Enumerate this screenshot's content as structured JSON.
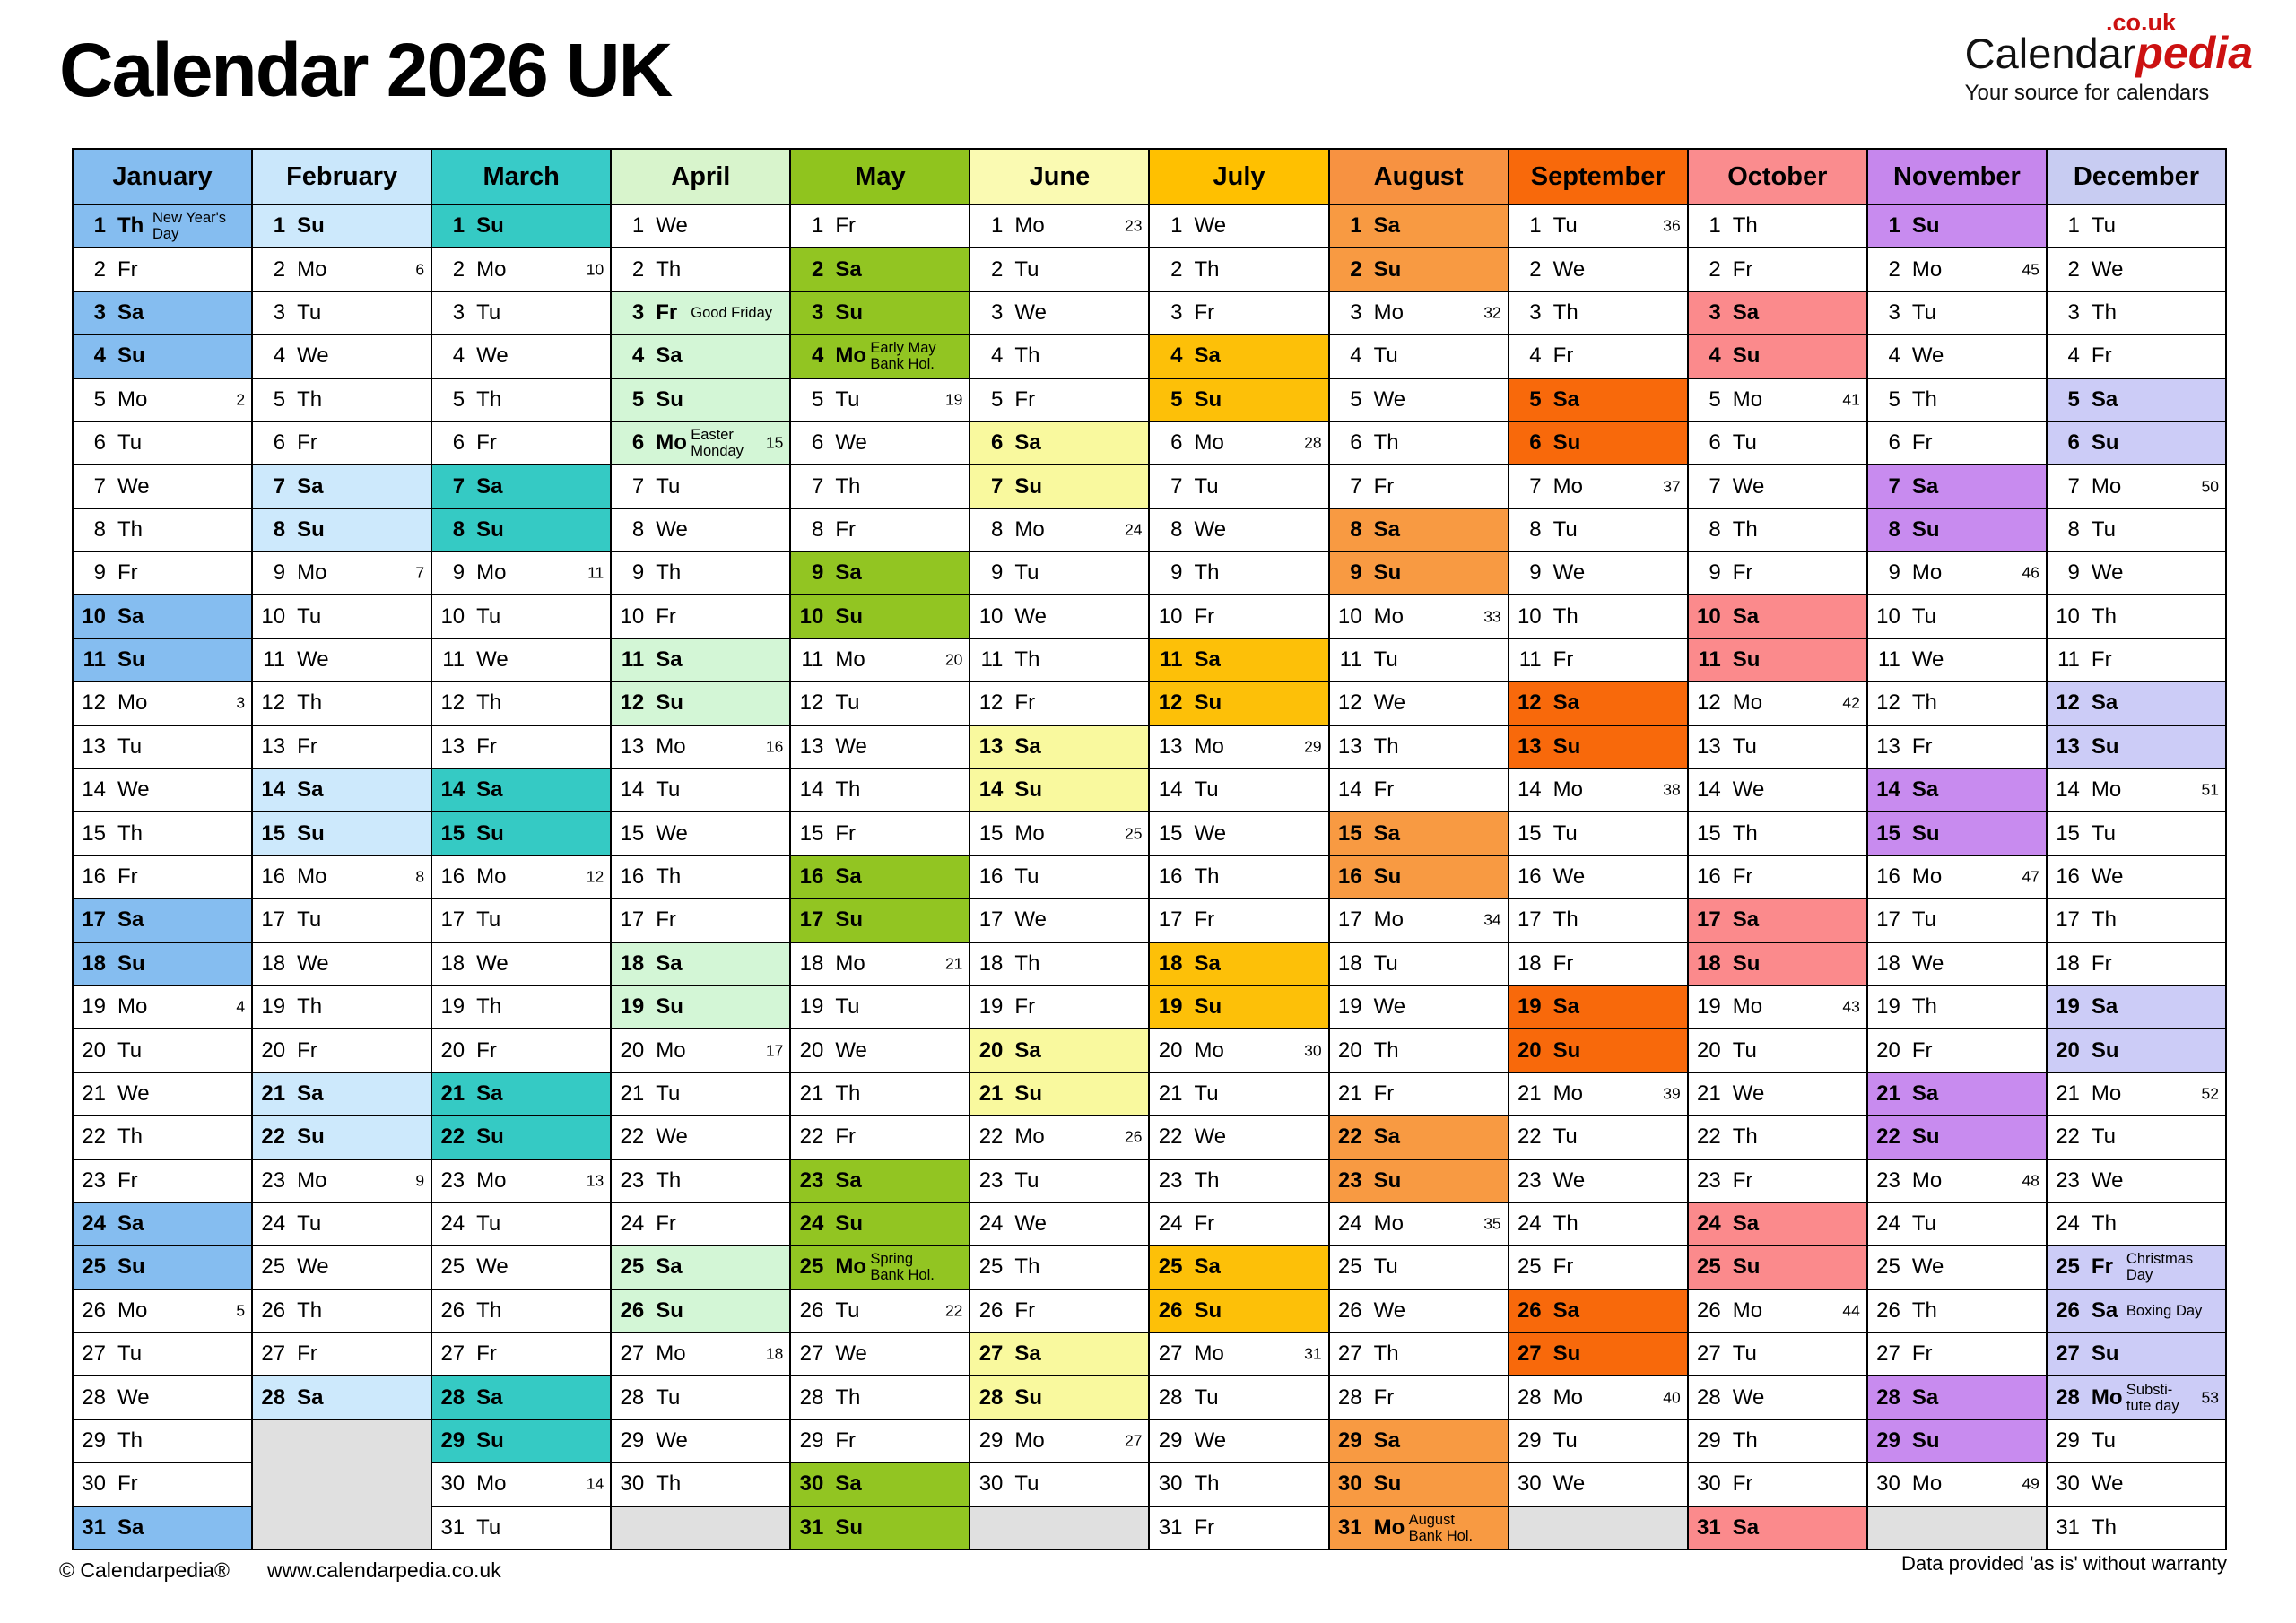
{
  "title": "Calendar 2026 UK",
  "logo": {
    "black_part": "Calendar",
    "red_part": "pedia",
    "tld": ".co.uk",
    "tagline": "Your source for calendars"
  },
  "footer": {
    "copyright": "© Calendarpedia®",
    "url": "www.calendarpedia.co.uk",
    "disclaimer": "Data provided 'as is' without warranty"
  },
  "empty_cell_color": "#e0e0e0",
  "months": [
    {
      "name": "January",
      "header_color": "#85bdf0",
      "color": "#85bdf0",
      "dows": [
        "Th",
        "Fr",
        "Sa",
        "Su",
        "Mo",
        "Tu",
        "We",
        "Th",
        "Fr",
        "Sa",
        "Su",
        "Mo",
        "Tu",
        "We",
        "Th",
        "Fr",
        "Sa",
        "Su",
        "Mo",
        "Tu",
        "We",
        "Th",
        "Fr",
        "Sa",
        "Su",
        "Mo",
        "Tu",
        "We",
        "Th",
        "Fr",
        "Sa"
      ],
      "notes": {
        "1": [
          "New Year's",
          "Day"
        ]
      },
      "weeks": {
        "5": 2,
        "12": 3,
        "19": 4,
        "26": 5
      }
    },
    {
      "name": "February",
      "header_color": "#cae7fb",
      "color": "#cde9fc",
      "dows": [
        "Su",
        "Mo",
        "Tu",
        "We",
        "Th",
        "Fr",
        "Sa",
        "Su",
        "Mo",
        "Tu",
        "We",
        "Th",
        "Fr",
        "Sa",
        "Su",
        "Mo",
        "Tu",
        "We",
        "Th",
        "Fr",
        "Sa",
        "Su",
        "Mo",
        "Tu",
        "We",
        "Th",
        "Fr",
        "Sa"
      ],
      "notes": {},
      "weeks": {
        "2": 6,
        "9": 7,
        "16": 8,
        "23": 9
      }
    },
    {
      "name": "March",
      "header_color": "#38cbc8",
      "color": "#35cac4",
      "dows": [
        "Su",
        "Mo",
        "Tu",
        "We",
        "Th",
        "Fr",
        "Sa",
        "Su",
        "Mo",
        "Tu",
        "We",
        "Th",
        "Fr",
        "Sa",
        "Su",
        "Mo",
        "Tu",
        "We",
        "Th",
        "Fr",
        "Sa",
        "Su",
        "Mo",
        "Tu",
        "We",
        "Th",
        "Fr",
        "Sa",
        "Su",
        "Mo",
        "Tu"
      ],
      "notes": {},
      "weeks": {
        "2": 10,
        "9": 11,
        "16": 12,
        "23": 13,
        "30": 14
      }
    },
    {
      "name": "April",
      "header_color": "#d8f4cc",
      "color": "#d3f6d6",
      "dows": [
        "We",
        "Th",
        "Fr",
        "Sa",
        "Su",
        "Mo",
        "Tu",
        "We",
        "Th",
        "Fr",
        "Sa",
        "Su",
        "Mo",
        "Tu",
        "We",
        "Th",
        "Fr",
        "Sa",
        "Su",
        "Mo",
        "Tu",
        "We",
        "Th",
        "Fr",
        "Sa",
        "Su",
        "Mo",
        "Tu",
        "We",
        "Th"
      ],
      "notes": {
        "3": [
          "Good Friday"
        ],
        "6": [
          "Easter",
          "Monday"
        ]
      },
      "weeks": {
        "6": 15,
        "13": 16,
        "20": 17,
        "27": 18
      }
    },
    {
      "name": "May",
      "header_color": "#90c41e",
      "color": "#92c522",
      "dows": [
        "Fr",
        "Sa",
        "Su",
        "Mo",
        "Tu",
        "We",
        "Th",
        "Fr",
        "Sa",
        "Su",
        "Mo",
        "Tu",
        "We",
        "Th",
        "Fr",
        "Sa",
        "Su",
        "Mo",
        "Tu",
        "We",
        "Th",
        "Fr",
        "Sa",
        "Su",
        "Mo",
        "Tu",
        "We",
        "Th",
        "Fr",
        "Sa",
        "Su"
      ],
      "notes": {
        "4": [
          "Early May",
          "Bank Hol."
        ],
        "25": [
          "Spring",
          "Bank Hol."
        ]
      },
      "weeks": {
        "5": 19,
        "11": 20,
        "18": 21,
        "26": 22
      }
    },
    {
      "name": "June",
      "header_color": "#fafab2",
      "color": "#f9f99e",
      "dows": [
        "Mo",
        "Tu",
        "We",
        "Th",
        "Fr",
        "Sa",
        "Su",
        "Mo",
        "Tu",
        "We",
        "Th",
        "Fr",
        "Sa",
        "Su",
        "Mo",
        "Tu",
        "We",
        "Th",
        "Fr",
        "Sa",
        "Su",
        "Mo",
        "Tu",
        "We",
        "Th",
        "Fr",
        "Sa",
        "Su",
        "Mo",
        "Tu"
      ],
      "notes": {},
      "weeks": {
        "1": 23,
        "8": 24,
        "15": 25,
        "22": 26,
        "29": 27
      }
    },
    {
      "name": "July",
      "header_color": "#ffc000",
      "color": "#fdc008",
      "dows": [
        "We",
        "Th",
        "Fr",
        "Sa",
        "Su",
        "Mo",
        "Tu",
        "We",
        "Th",
        "Fr",
        "Sa",
        "Su",
        "Mo",
        "Tu",
        "We",
        "Th",
        "Fr",
        "Sa",
        "Su",
        "Mo",
        "Tu",
        "We",
        "Th",
        "Fr",
        "Sa",
        "Su",
        "Mo",
        "Tu",
        "We",
        "Th",
        "Fr"
      ],
      "notes": {},
      "weeks": {
        "6": 28,
        "13": 29,
        "20": 30,
        "27": 31
      }
    },
    {
      "name": "August",
      "header_color": "#f79241",
      "color": "#f89a42",
      "dows": [
        "Sa",
        "Su",
        "Mo",
        "Tu",
        "We",
        "Th",
        "Fr",
        "Sa",
        "Su",
        "Mo",
        "Tu",
        "We",
        "Th",
        "Fr",
        "Sa",
        "Su",
        "Mo",
        "Tu",
        "We",
        "Th",
        "Fr",
        "Sa",
        "Su",
        "Mo",
        "Tu",
        "We",
        "Th",
        "Fr",
        "Sa",
        "Su",
        "Mo"
      ],
      "notes": {
        "31": [
          "August",
          "Bank Hol."
        ]
      },
      "weeks": {
        "3": 32,
        "10": 33,
        "17": 34,
        "24": 35
      }
    },
    {
      "name": "September",
      "header_color": "#f8690b",
      "color": "#f8690b",
      "dows": [
        "Tu",
        "We",
        "Th",
        "Fr",
        "Sa",
        "Su",
        "Mo",
        "Tu",
        "We",
        "Th",
        "Fr",
        "Sa",
        "Su",
        "Mo",
        "Tu",
        "We",
        "Th",
        "Fr",
        "Sa",
        "Su",
        "Mo",
        "Tu",
        "We",
        "Th",
        "Fr",
        "Sa",
        "Su",
        "Mo",
        "Tu",
        "We"
      ],
      "notes": {},
      "weeks": {
        "1": 36,
        "7": 37,
        "14": 38,
        "21": 39,
        "28": 40
      }
    },
    {
      "name": "October",
      "header_color": "#fa8c8e",
      "color": "#fb8a8c",
      "dows": [
        "Th",
        "Fr",
        "Sa",
        "Su",
        "Mo",
        "Tu",
        "We",
        "Th",
        "Fr",
        "Sa",
        "Su",
        "Mo",
        "Tu",
        "We",
        "Th",
        "Fr",
        "Sa",
        "Su",
        "Mo",
        "Tu",
        "We",
        "Th",
        "Fr",
        "Sa",
        "Su",
        "Mo",
        "Tu",
        "We",
        "Th",
        "Fr",
        "Sa"
      ],
      "notes": {},
      "weeks": {
        "5": 41,
        "12": 42,
        "19": 43,
        "26": 44
      }
    },
    {
      "name": "November",
      "header_color": "#c687ed",
      "color": "#c88bef",
      "dows": [
        "Su",
        "Mo",
        "Tu",
        "We",
        "Th",
        "Fr",
        "Sa",
        "Su",
        "Mo",
        "Tu",
        "We",
        "Th",
        "Fr",
        "Sa",
        "Su",
        "Mo",
        "Tu",
        "We",
        "Th",
        "Fr",
        "Sa",
        "Su",
        "Mo",
        "Tu",
        "We",
        "Th",
        "Fr",
        "Sa",
        "Su",
        "Mo"
      ],
      "notes": {},
      "weeks": {
        "2": 45,
        "9": 46,
        "16": 47,
        "23": 48,
        "30": 49
      }
    },
    {
      "name": "December",
      "header_color": "#c8ccf2",
      "color": "#ccccf7",
      "dows": [
        "Tu",
        "We",
        "Th",
        "Fr",
        "Sa",
        "Su",
        "Mo",
        "Tu",
        "We",
        "Th",
        "Fr",
        "Sa",
        "Su",
        "Mo",
        "Tu",
        "We",
        "Th",
        "Fr",
        "Sa",
        "Su",
        "Mo",
        "Tu",
        "We",
        "Th",
        "Fr",
        "Sa",
        "Su",
        "Mo",
        "Tu",
        "We",
        "Th"
      ],
      "notes": {
        "25": [
          "Christmas",
          "Day"
        ],
        "26": [
          "Boxing Day"
        ],
        "28": [
          "Substi-",
          "tute day"
        ]
      },
      "weeks": {
        "7": 50,
        "14": 51,
        "21": 52,
        "28": 53
      }
    }
  ]
}
